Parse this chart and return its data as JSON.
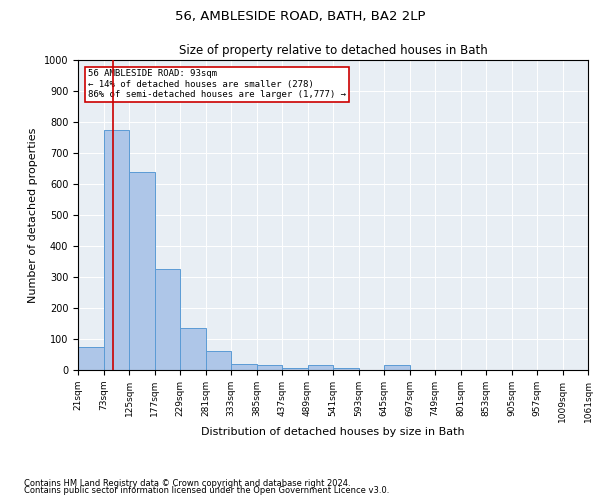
{
  "title": "56, AMBLESIDE ROAD, BATH, BA2 2LP",
  "subtitle": "Size of property relative to detached houses in Bath",
  "xlabel": "Distribution of detached houses by size in Bath",
  "ylabel": "Number of detached properties",
  "footnote1": "Contains HM Land Registry data © Crown copyright and database right 2024.",
  "footnote2": "Contains public sector information licensed under the Open Government Licence v3.0.",
  "annotation_line1": "56 AMBLESIDE ROAD: 93sqm",
  "annotation_line2": "← 14% of detached houses are smaller (278)",
  "annotation_line3": "86% of semi-detached houses are larger (1,777) →",
  "property_size": 93,
  "bar_edges": [
    21,
    73,
    125,
    177,
    229,
    281,
    333,
    385,
    437,
    489,
    541,
    593,
    645,
    697,
    749,
    801,
    853,
    905,
    957,
    1009,
    1061
  ],
  "bar_heights": [
    75,
    775,
    640,
    325,
    135,
    60,
    20,
    15,
    5,
    15,
    5,
    0,
    15,
    0,
    0,
    0,
    0,
    0,
    0,
    0
  ],
  "bar_color": "#aec6e8",
  "bar_edge_color": "#5b9bd5",
  "vline_color": "#cc0000",
  "vline_x": 93,
  "ylim": [
    0,
    1000
  ],
  "xlim": [
    21,
    1061
  ],
  "bg_color": "#e8eef4",
  "annotation_box_color": "#cc0000",
  "title_fontsize": 9.5,
  "subtitle_fontsize": 8.5,
  "label_fontsize": 8,
  "tick_fontsize": 6.5,
  "footnote_fontsize": 6
}
